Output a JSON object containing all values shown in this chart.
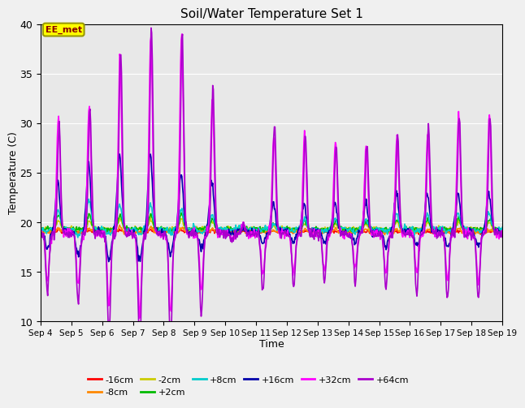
{
  "title": "Soil/Water Temperature Set 1",
  "xlabel": "Time",
  "ylabel": "Temperature (C)",
  "ylim": [
    10,
    40
  ],
  "days": 15,
  "background_color": "#f0f0f0",
  "plot_bg": "#e8e8e8",
  "label_box": "EE_met",
  "series": {
    "-16cm": {
      "color": "#ff0000",
      "lw": 1.2
    },
    "-8cm": {
      "color": "#ff8800",
      "lw": 1.2
    },
    "-2cm": {
      "color": "#cccc00",
      "lw": 1.2
    },
    "+2cm": {
      "color": "#00bb00",
      "lw": 1.2
    },
    "+8cm": {
      "color": "#00cccc",
      "lw": 1.2
    },
    "+16cm": {
      "color": "#0000aa",
      "lw": 1.2
    },
    "+32cm": {
      "color": "#ff00ff",
      "lw": 1.2
    },
    "+64cm": {
      "color": "#aa00cc",
      "lw": 1.2
    }
  },
  "x_tick_labels": [
    "Sep 4",
    "Sep 5",
    "Sep 6",
    "Sep 7",
    "Sep 8",
    "Sep 9",
    "Sep 10",
    "Sep 11",
    "Sep 12",
    "Sep 13",
    "Sep 14",
    "Sep 15",
    "Sep 16",
    "Sep 17",
    "Sep 18",
    "Sep 19"
  ],
  "num_points": 720,
  "legend_order": [
    "-16cm",
    "-8cm",
    "-2cm",
    "+2cm",
    "+8cm",
    "+16cm",
    "+32cm",
    "+64cm"
  ]
}
